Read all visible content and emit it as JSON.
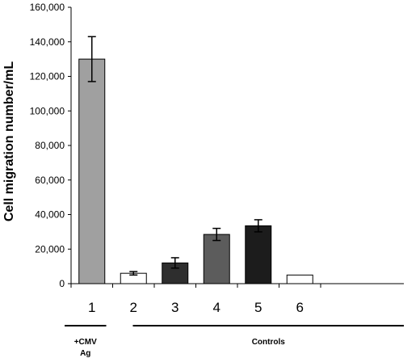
{
  "chart_data": {
    "type": "bar",
    "categories": [
      "1",
      "2",
      "3",
      "4",
      "5",
      "6"
    ],
    "values": [
      130000,
      6000,
      12000,
      28500,
      33500,
      5000
    ],
    "errors": [
      13000,
      1000,
      3000,
      3500,
      3500,
      0
    ],
    "bar_colors": [
      "#a0a0a0",
      "#ffffff",
      "#2e2e2e",
      "#5c5c5c",
      "#1c1c1c",
      "#ffffff"
    ],
    "ylabel": "Cell migration number/mL",
    "ylim": [
      0,
      160000
    ],
    "yticks": [
      0,
      20000,
      40000,
      60000,
      80000,
      100000,
      120000,
      140000,
      160000
    ],
    "ytick_labels": [
      "0",
      "20,000",
      "40,000",
      "60,000",
      "80,000",
      "100,000",
      "120,000",
      "140,000",
      "160,000"
    ],
    "grid": false,
    "groups": [
      {
        "label_lines": [
          "+CMV",
          "Ag"
        ],
        "categories": [
          "1"
        ]
      },
      {
        "label_lines": [
          "Controls"
        ],
        "categories": [
          "2",
          "3",
          "4",
          "5",
          "6"
        ]
      }
    ]
  }
}
